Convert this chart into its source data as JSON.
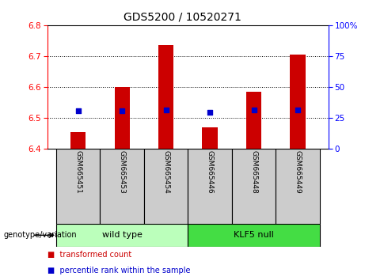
{
  "title": "GDS5200 / 10520271",
  "samples": [
    "GSM665451",
    "GSM665453",
    "GSM665454",
    "GSM665446",
    "GSM665448",
    "GSM665449"
  ],
  "bar_heights": [
    6.453,
    6.6,
    6.735,
    6.468,
    6.585,
    6.705
  ],
  "blue_dot_values": [
    6.522,
    6.523,
    6.525,
    6.516,
    6.524,
    6.525
  ],
  "bar_bottom": 6.4,
  "ylim_left": [
    6.4,
    6.8
  ],
  "ylim_right": [
    0,
    100
  ],
  "yticks_left": [
    6.4,
    6.5,
    6.6,
    6.7,
    6.8
  ],
  "yticks_right": [
    0,
    25,
    50,
    75,
    100
  ],
  "ytick_labels_right": [
    "0",
    "25",
    "50",
    "75",
    "100%"
  ],
  "bar_color": "#cc0000",
  "dot_color": "#0000cc",
  "group1": {
    "label": "wild type",
    "indices": [
      0,
      1,
      2
    ],
    "color": "#bbffbb"
  },
  "group2": {
    "label": "KLF5 null",
    "indices": [
      3,
      4,
      5
    ],
    "color": "#44dd44"
  },
  "genotype_label": "genotype/variation",
  "legend_bar_label": "transformed count",
  "legend_dot_label": "percentile rank within the sample",
  "bg_color": "#ffffff",
  "label_area_color": "#cccccc",
  "title_fontsize": 10,
  "tick_fontsize": 7.5,
  "label_fontsize": 6.5,
  "group_fontsize": 8,
  "bar_width": 0.35
}
